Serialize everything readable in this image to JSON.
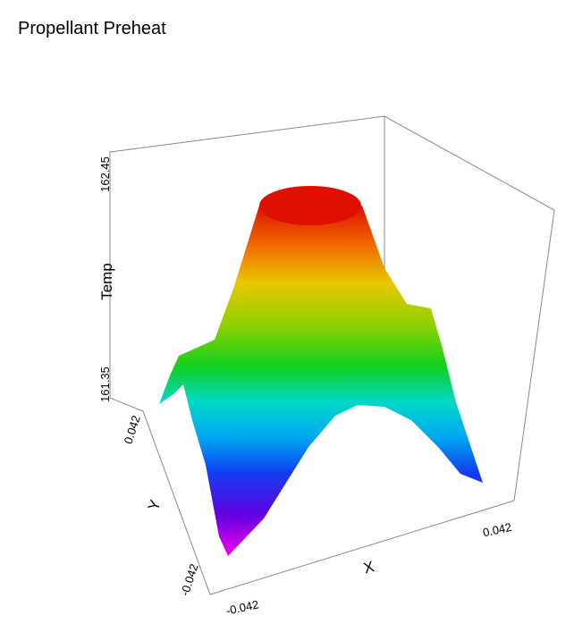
{
  "chart_data": {
    "type": "surface3d",
    "title": "Propellant Preheat",
    "x_label": "X",
    "y_label": "Y",
    "z_label": "Temp",
    "xlim": [
      -0.042,
      0.042
    ],
    "xticks": [
      -0.042,
      0.042
    ],
    "ylim": [
      -0.042,
      0.042
    ],
    "yticks": [
      -0.042,
      0.042
    ],
    "zlim": [
      161.35,
      162.45
    ],
    "zticks": [
      161.35,
      162.45
    ]
  }
}
